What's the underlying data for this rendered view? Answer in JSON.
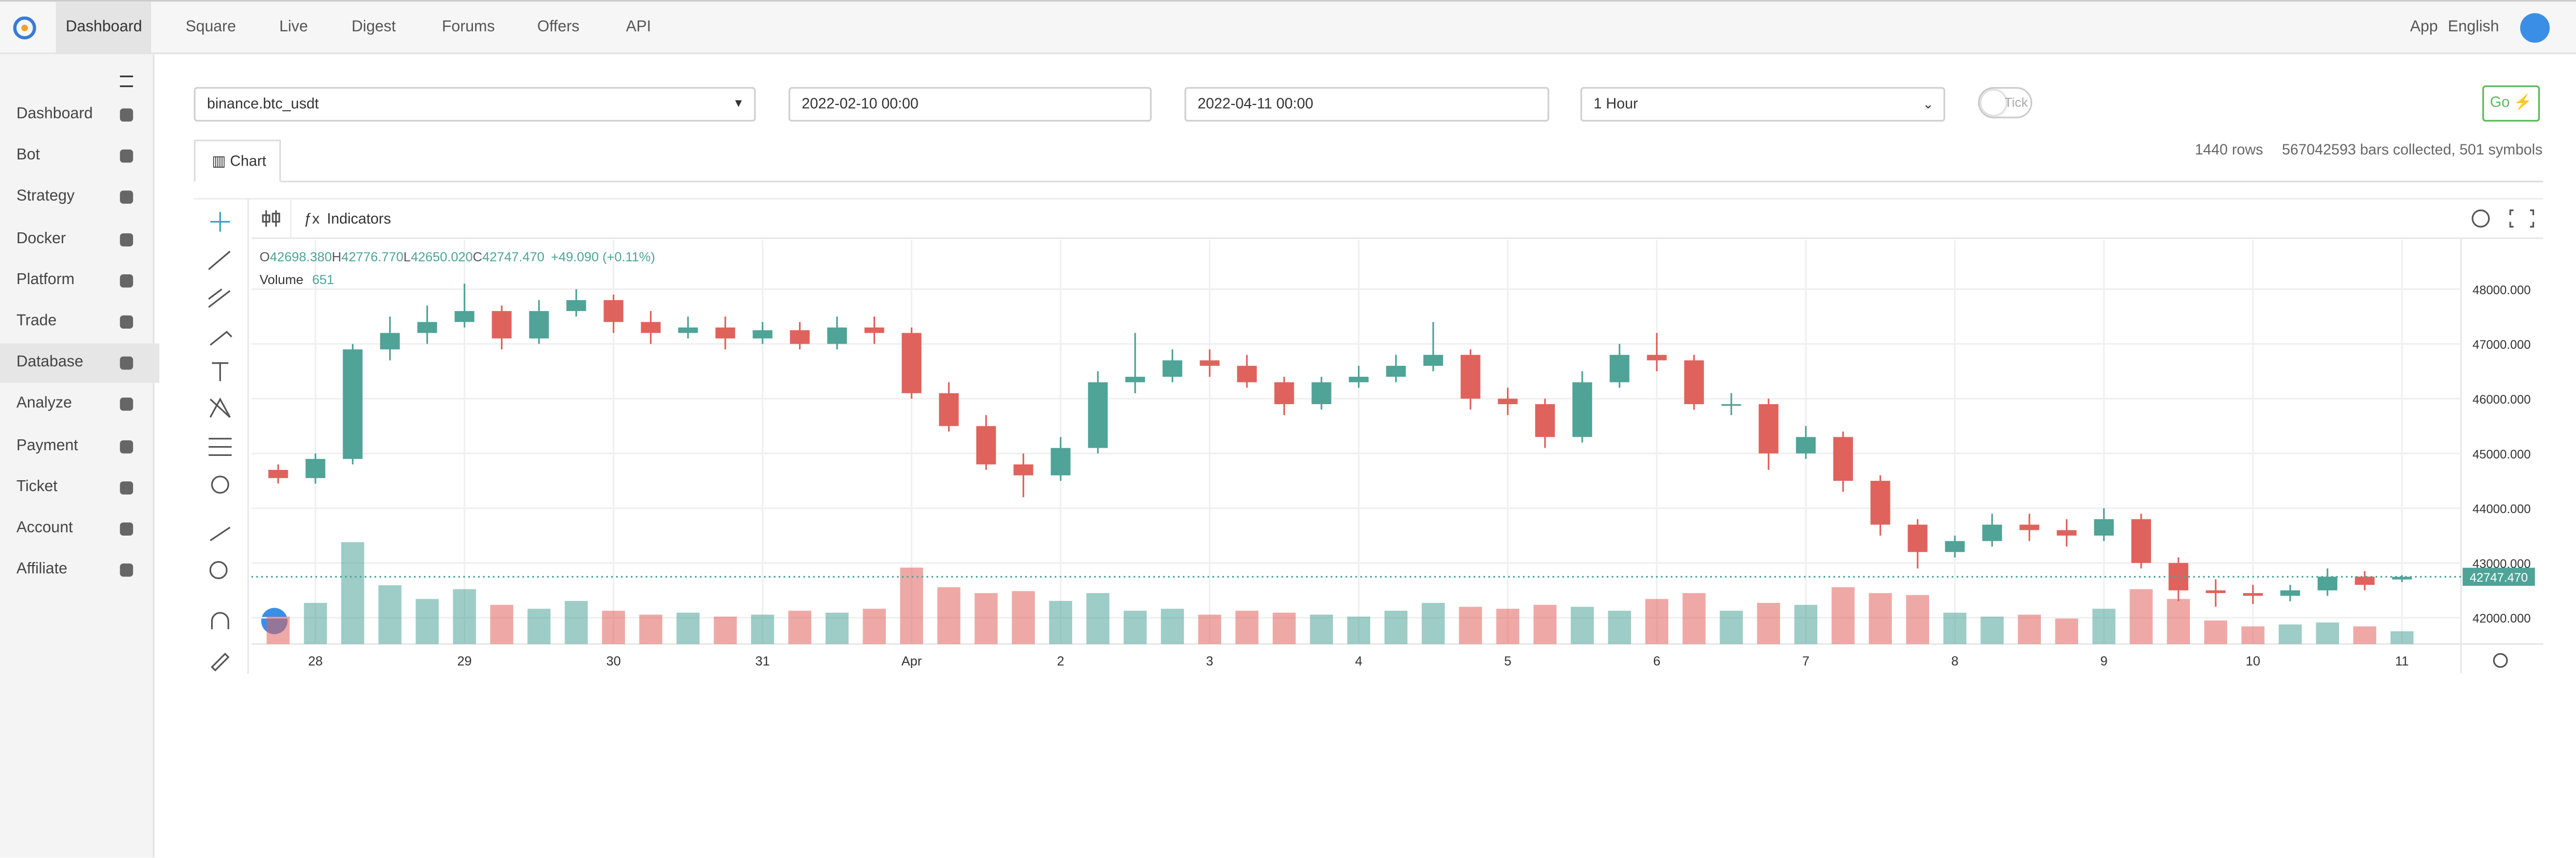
{
  "nav": {
    "items": [
      "Dashboard",
      "Square",
      "Live",
      "Digest",
      "Forums",
      "Offers",
      "API"
    ],
    "right": [
      "App",
      "English"
    ]
  },
  "sidebar": {
    "items": [
      "Dashboard",
      "Bot",
      "Strategy",
      "Docker",
      "Platform",
      "Trade",
      "Database",
      "Analyze",
      "Payment",
      "Ticket",
      "Account",
      "Affiliate"
    ]
  },
  "form": {
    "symbol": "binance.btc_usdt",
    "start": "2022-02-10 00:00",
    "end": "2022-04-11 00:00",
    "period": "1 Hour",
    "tick": "Tick",
    "go": "Go"
  },
  "tab": "Chart",
  "stats": {
    "rows": "1440 rows",
    "bars": "567042593 bars collected, 501 symbols"
  },
  "toolbar": {
    "indicators": "Indicators"
  },
  "chart_data": {
    "type": "candlestick",
    "categories": [
      null,
      "28",
      null,
      null,
      null,
      "29",
      null,
      null,
      null,
      "30",
      null,
      null,
      null,
      "31",
      null,
      null,
      null,
      "Apr",
      null,
      null,
      null,
      "2",
      null,
      null,
      null,
      "3",
      null,
      null,
      null,
      "4",
      null,
      null,
      null,
      "5",
      null,
      null,
      null,
      "6",
      null,
      null,
      null,
      "7",
      null,
      null,
      null,
      "8",
      null,
      null,
      null,
      "9",
      null,
      null,
      null,
      "10",
      null,
      null,
      null,
      "11"
    ],
    "open": [
      44700,
      44550,
      44900,
      46900,
      47200,
      47400,
      47600,
      47100,
      47600,
      47800,
      47400,
      47200,
      47300,
      47100,
      47250,
      47000,
      47300,
      47200,
      46100,
      45500,
      44800,
      44600,
      45100,
      46300,
      46400,
      46700,
      46600,
      46300,
      45900,
      46300,
      46400,
      46600,
      46800,
      46000,
      45900,
      45300,
      46300,
      46800,
      46700,
      45900,
      45900,
      45000,
      45300,
      44500,
      43700,
      43200,
      43400,
      43700,
      43600,
      43500,
      43800,
      43000,
      42500,
      42450,
      42400,
      42500,
      42750,
      42698.38
    ],
    "high": [
      44800,
      45000,
      47000,
      47500,
      47700,
      48100,
      47700,
      47800,
      48000,
      47900,
      47600,
      47500,
      47500,
      47400,
      47400,
      47500,
      47500,
      47300,
      46300,
      45700,
      45000,
      45300,
      46500,
      47200,
      46900,
      46900,
      46800,
      46400,
      46400,
      46600,
      46800,
      47400,
      46900,
      46200,
      46000,
      46500,
      47000,
      47200,
      46800,
      46100,
      46000,
      45500,
      45400,
      44600,
      43800,
      43500,
      43900,
      43900,
      43800,
      44000,
      43900,
      43100,
      42700,
      42600,
      42600,
      42900,
      42850,
      42776.77
    ],
    "low": [
      44450,
      44450,
      44800,
      46700,
      47000,
      47300,
      46900,
      47000,
      47500,
      47200,
      47000,
      47100,
      46900,
      47000,
      46900,
      46900,
      47000,
      46000,
      45400,
      44700,
      44200,
      44500,
      45000,
      46100,
      46300,
      46400,
      46200,
      45700,
      45800,
      46200,
      46300,
      46500,
      45800,
      45700,
      45100,
      45200,
      46200,
      46500,
      45800,
      45700,
      44700,
      44900,
      44300,
      43500,
      42900,
      43100,
      43300,
      43400,
      43300,
      43400,
      42900,
      42300,
      42200,
      42250,
      42300,
      42400,
      42500,
      42650.02
    ],
    "close": [
      44550,
      44900,
      46900,
      47200,
      47400,
      47600,
      47100,
      47600,
      47800,
      47400,
      47200,
      47300,
      47100,
      47250,
      47000,
      47300,
      47200,
      46100,
      45500,
      44800,
      44600,
      45100,
      46300,
      46400,
      46700,
      46600,
      46300,
      45900,
      46300,
      46400,
      46600,
      46800,
      46000,
      45900,
      45300,
      46300,
      46800,
      46700,
      45900,
      45900,
      45000,
      45300,
      44500,
      43700,
      43200,
      43400,
      43700,
      43600,
      43500,
      43800,
      43000,
      42500,
      42450,
      42400,
      42500,
      42750,
      42600,
      42747.47
    ],
    "volume": [
      1400,
      2100,
      5200,
      3000,
      2300,
      2800,
      2000,
      1800,
      2200,
      1700,
      1500,
      1600,
      1400,
      1500,
      1700,
      1600,
      1800,
      3900,
      2900,
      2600,
      2700,
      2200,
      2600,
      1700,
      1800,
      1500,
      1700,
      1600,
      1500,
      1400,
      1700,
      2100,
      1900,
      1800,
      2000,
      1900,
      1700,
      2300,
      2600,
      1700,
      2100,
      2000,
      2900,
      2600,
      2500,
      1600,
      1400,
      1500,
      1300,
      1800,
      2800,
      2300,
      1200,
      900,
      1000,
      1100,
      900,
      651
    ],
    "up_color": "#4fa397",
    "down_color": "#e0625d",
    "ylim": [
      41520,
      48900
    ],
    "yticks": [
      {
        "value": 42000,
        "label": "42000.000"
      },
      {
        "value": 43000,
        "label": "43000.000"
      },
      {
        "value": 44000,
        "label": "44000.000"
      },
      {
        "value": 45000,
        "label": "45000.000"
      },
      {
        "value": 46000,
        "label": "46000.000"
      },
      {
        "value": 47000,
        "label": "47000.000"
      },
      {
        "value": 48000,
        "label": "48000.000"
      }
    ],
    "grid": true,
    "legend": {
      "o": "O",
      "open": "42698.380",
      "h": "H",
      "high": "42776.770",
      "l": "L",
      "low": "42650.020",
      "c": "C",
      "close": "42747.470",
      "change": "+49.090 (+0.11%)",
      "volume_label": "Volume",
      "volume": "651"
    },
    "price_tag": "42747.470"
  }
}
